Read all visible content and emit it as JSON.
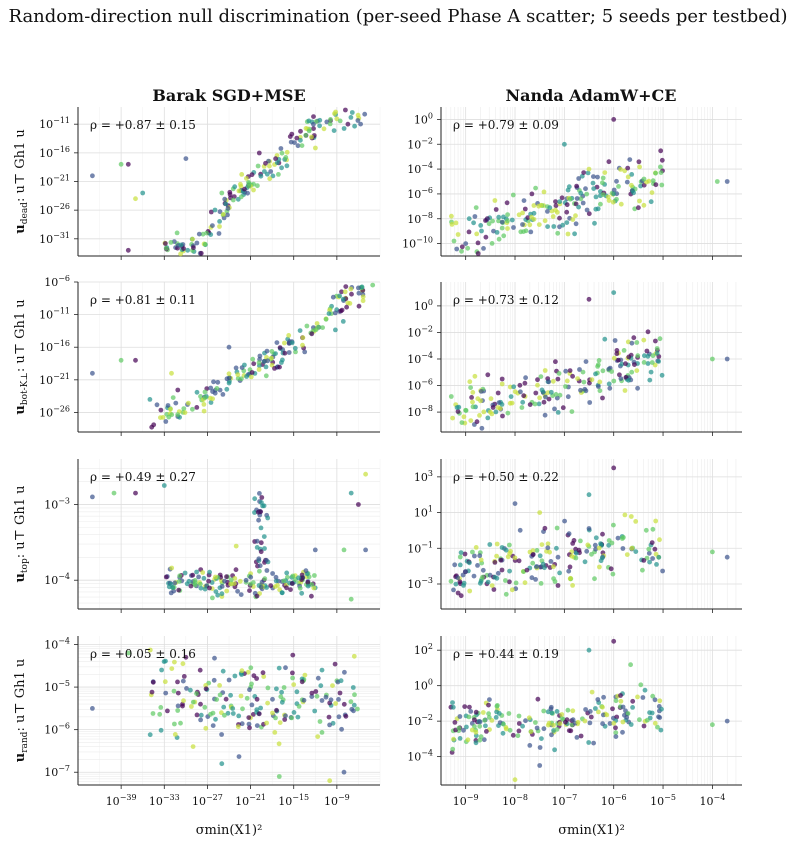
{
  "title": "Random-direction null discrimination (per-seed Phase A scatter; 5 seeds per testbed)",
  "columns": [
    "Barak SGD+MSE",
    "Nanda AdamW+CE"
  ],
  "xlabel": "σmin(X1)²",
  "row_labels": [
    {
      "bold": "u",
      "sub": "dead",
      "rest": ": u⊤ Gh1 u"
    },
    {
      "bold": "u",
      "sub": "bot-K⊥",
      "rest": ": u⊤ Gh1 u"
    },
    {
      "bold": "u",
      "sub": "top",
      "rest": ": u⊤ Gh1 u"
    },
    {
      "bold": "u",
      "sub": "rand",
      "rest": ": u⊤ Gh1 u"
    }
  ],
  "colors": [
    "#440154",
    "#3b528b",
    "#21918c",
    "#5ec962",
    "#c8e03a"
  ],
  "chart_data": [
    {
      "type": "scatter",
      "id": "barak-dead",
      "annotation": "ρ = +0.87 ± 0.15",
      "xlim_exp": [
        -45,
        -3
      ],
      "ylim_exp": [
        -34,
        -8
      ],
      "xticks": [
        -39,
        -33,
        -27,
        -21,
        -15,
        -9
      ],
      "yticks": [
        -31,
        -26,
        -21,
        -16,
        -11
      ],
      "cloud": {
        "n": 190,
        "x": [
          -33,
          -5
        ],
        "trend": [
          [
            -33,
            -33
          ],
          [
            -28,
            -32
          ],
          [
            -24,
            -25
          ],
          [
            -21,
            -21
          ],
          [
            -17,
            -17
          ],
          [
            -13,
            -12
          ],
          [
            -8,
            -10
          ],
          [
            -5,
            -9
          ]
        ],
        "spread": 1.2,
        "seed": 11
      },
      "outliers": [
        [
          -43,
          -20
        ],
        [
          -39,
          -18
        ],
        [
          -38,
          -18
        ],
        [
          -36,
          -23
        ],
        [
          -37,
          -24
        ],
        [
          -30,
          -17
        ],
        [
          -25,
          -23
        ],
        [
          -38,
          -33
        ]
      ]
    },
    {
      "type": "scatter",
      "id": "nanda-dead",
      "annotation": "ρ = +0.79 ± 0.09",
      "xlim_exp": [
        -9.5,
        -3.4
      ],
      "ylim_exp": [
        -11,
        1
      ],
      "xticks": [
        -9,
        -8,
        -7,
        -6,
        -5,
        -4
      ],
      "yticks": [
        -10,
        -8,
        -6,
        -4,
        -2,
        0
      ],
      "cloud": {
        "n": 210,
        "x": [
          -9.3,
          -5.0
        ],
        "trend": [
          [
            -9.3,
            -9.5
          ],
          [
            -8,
            -8
          ],
          [
            -7,
            -7
          ],
          [
            -6,
            -5.5
          ],
          [
            -5.5,
            -5
          ],
          [
            -5,
            -4.5
          ]
        ],
        "spread": 1.0,
        "seed": 22
      },
      "outliers": [
        [
          -3.7,
          -5
        ],
        [
          -3.9,
          -5
        ],
        [
          -6,
          0
        ],
        [
          -7,
          -2
        ],
        [
          -6.5,
          -4
        ],
        [
          -9,
          -10
        ]
      ]
    },
    {
      "type": "scatter",
      "id": "barak-bot",
      "annotation": "ρ = +0.81 ± 0.11",
      "xlim_exp": [
        -45,
        -3
      ],
      "ylim_exp": [
        -29,
        -6
      ],
      "xticks": [
        -39,
        -33,
        -27,
        -21,
        -15,
        -9
      ],
      "yticks": [
        -26,
        -21,
        -16,
        -11,
        -6
      ],
      "cloud": {
        "n": 190,
        "x": [
          -35,
          -4
        ],
        "trend": [
          [
            -35,
            -28
          ],
          [
            -31,
            -25
          ],
          [
            -28,
            -24
          ],
          [
            -24,
            -21
          ],
          [
            -21,
            -20
          ],
          [
            -17,
            -17
          ],
          [
            -13,
            -14
          ],
          [
            -9,
            -10
          ],
          [
            -5,
            -7
          ]
        ],
        "spread": 1.1,
        "seed": 33
      },
      "outliers": [
        [
          -43,
          -20
        ],
        [
          -39,
          -18
        ],
        [
          -37,
          -18
        ],
        [
          -35,
          -24
        ],
        [
          -32,
          -20
        ],
        [
          -24,
          -16
        ]
      ]
    },
    {
      "type": "scatter",
      "id": "nanda-bot",
      "annotation": "ρ = +0.73 ± 0.12",
      "xlim_exp": [
        -9.5,
        -3.4
      ],
      "ylim_exp": [
        -9.5,
        1.8
      ],
      "xticks": [
        -9,
        -8,
        -7,
        -6,
        -5,
        -4
      ],
      "yticks": [
        -8,
        -6,
        -4,
        -2,
        0
      ],
      "cloud": {
        "n": 210,
        "x": [
          -9.3,
          -5.0
        ],
        "trend": [
          [
            -9.3,
            -8
          ],
          [
            -8,
            -7
          ],
          [
            -7,
            -6
          ],
          [
            -6,
            -4.5
          ],
          [
            -5,
            -3.5
          ]
        ],
        "spread": 0.9,
        "seed": 44
      },
      "outliers": [
        [
          -3.7,
          -4
        ],
        [
          -4,
          -4
        ],
        [
          -6.5,
          0.5
        ],
        [
          -6,
          1
        ],
        [
          -8.5,
          -8
        ]
      ]
    },
    {
      "type": "scatter",
      "id": "barak-top",
      "annotation": "ρ = +0.49 ± 0.27",
      "xlim_exp": [
        -45,
        -3
      ],
      "ylim_exp": [
        -4.38,
        -2.4
      ],
      "xticks": [
        -39,
        -33,
        -27,
        -21,
        -15,
        -9
      ],
      "yticks": [
        -4,
        -3
      ],
      "cloud": {
        "n": 170,
        "x": [
          -33,
          -12
        ],
        "trend": [
          [
            -33,
            -4.0
          ],
          [
            -20,
            -4.05
          ],
          [
            -12,
            -4.0
          ]
        ],
        "spread": 0.08,
        "seed": 55
      },
      "riser": {
        "n": 35,
        "x": [
          -20.5,
          -18.5
        ],
        "y": [
          -3.9,
          -2.85
        ]
      },
      "outliers": [
        [
          -43,
          -2.9
        ],
        [
          -40,
          -2.85
        ],
        [
          -37,
          -2.85
        ],
        [
          -33,
          -2.75
        ],
        [
          -23,
          -3.55
        ],
        [
          -12,
          -3.6
        ],
        [
          -8,
          -3.6
        ],
        [
          -6,
          -3.0
        ],
        [
          -7,
          -2.85
        ],
        [
          -5,
          -2.6
        ],
        [
          -5,
          -3.6
        ],
        [
          -7,
          -4.25
        ]
      ]
    },
    {
      "type": "scatter",
      "id": "nanda-top",
      "annotation": "ρ = +0.50 ± 0.22",
      "xlim_exp": [
        -9.5,
        -3.4
      ],
      "ylim_exp": [
        -4.4,
        4
      ],
      "xticks": [
        -9,
        -8,
        -7,
        -6,
        -5,
        -4
      ],
      "yticks": [
        -3,
        -1,
        1,
        3
      ],
      "cloud": {
        "n": 210,
        "x": [
          -9.3,
          -5.0
        ],
        "trend": [
          [
            -9.3,
            -2.5
          ],
          [
            -7,
            -1.6
          ],
          [
            -6,
            -1
          ],
          [
            -5,
            -0.8
          ]
        ],
        "spread": 0.8,
        "seed": 66
      },
      "outliers": [
        [
          -3.7,
          -1.5
        ],
        [
          -4,
          -1.2
        ],
        [
          -6,
          3.5
        ],
        [
          -6.5,
          2
        ],
        [
          -7.5,
          1
        ],
        [
          -8,
          1.5
        ]
      ]
    },
    {
      "type": "scatter",
      "id": "barak-rand",
      "annotation": "ρ = +0.05 ± 0.16",
      "xlim_exp": [
        -45,
        -3
      ],
      "ylim_exp": [
        -7.3,
        -3.8
      ],
      "xticks": [
        -39,
        -33,
        -27,
        -21,
        -15,
        -9
      ],
      "yticks": [
        -7,
        -6,
        -5,
        -4
      ],
      "cloud": {
        "n": 200,
        "x": [
          -35,
          -6
        ],
        "trend": [
          [
            -35,
            -5.3
          ],
          [
            -20,
            -5.3
          ],
          [
            -6,
            -5.3
          ]
        ],
        "spread": 0.45,
        "seed": 77
      },
      "outliers": [
        [
          -43,
          -5.5
        ],
        [
          -38,
          -4.2
        ],
        [
          -30,
          -4.3
        ],
        [
          -25,
          -6.8
        ],
        [
          -10,
          -7.2
        ],
        [
          -8,
          -7.0
        ],
        [
          -17,
          -7.1
        ]
      ]
    },
    {
      "type": "scatter",
      "id": "nanda-rand",
      "annotation": "ρ = +0.44 ± 0.19",
      "xlim_exp": [
        -9.5,
        -3.4
      ],
      "ylim_exp": [
        -5.6,
        2.8
      ],
      "xticks": [
        -9,
        -8,
        -7,
        -6,
        -5,
        -4
      ],
      "yticks": [
        -4,
        -2,
        0,
        2
      ],
      "cloud": {
        "n": 210,
        "x": [
          -9.3,
          -5.0
        ],
        "trend": [
          [
            -9.3,
            -2.3
          ],
          [
            -7,
            -2
          ],
          [
            -6,
            -1.5
          ],
          [
            -5,
            -1.7
          ]
        ],
        "spread": 0.7,
        "seed": 88
      },
      "outliers": [
        [
          -3.7,
          -2
        ],
        [
          -4,
          -2.2
        ],
        [
          -6,
          2.5
        ],
        [
          -6.5,
          2
        ],
        [
          -8,
          -5.3
        ],
        [
          -7.5,
          -4.5
        ]
      ]
    }
  ]
}
